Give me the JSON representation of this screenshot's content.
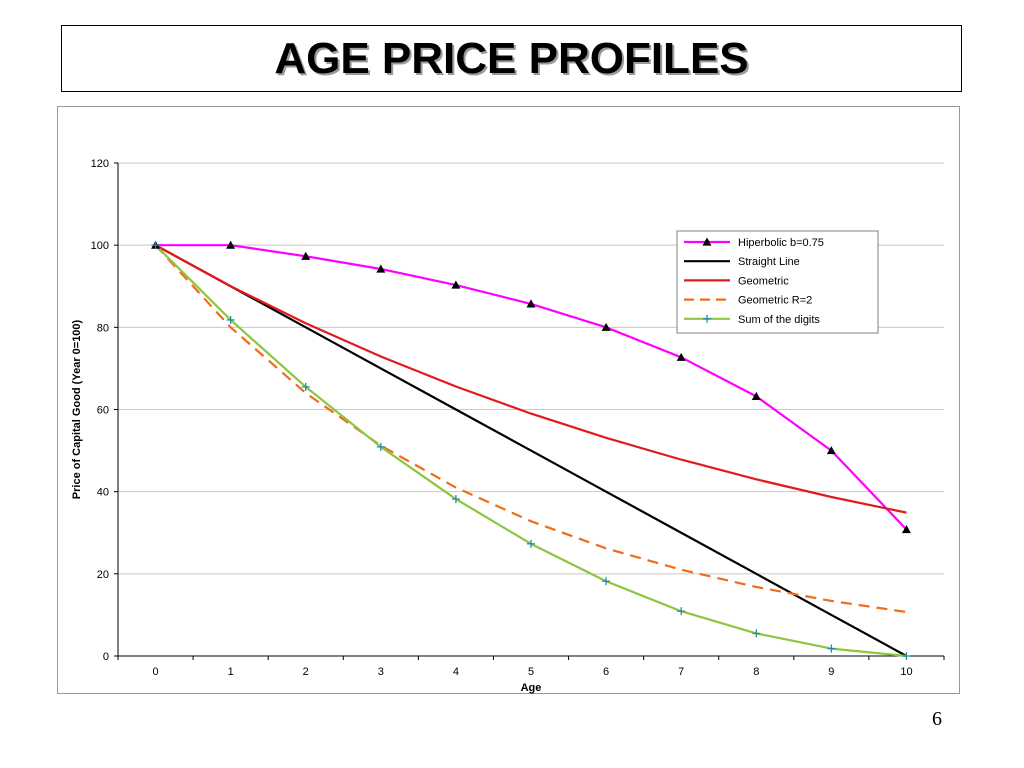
{
  "slide": {
    "title": "AGE PRICE PROFILES",
    "page_number": "6"
  },
  "chart_data": {
    "type": "line",
    "xlabel": "Age",
    "ylabel": "Price of Capital Good (Year 0=100)",
    "x": [
      0,
      1,
      2,
      3,
      4,
      5,
      6,
      7,
      8,
      9,
      10
    ],
    "xlim": [
      0,
      10
    ],
    "ylim": [
      0,
      120
    ],
    "y_ticks": [
      0,
      20,
      40,
      60,
      80,
      100,
      120
    ],
    "grid": "horizontal",
    "legend_position": "top-right",
    "series": [
      {
        "name": "Hiperbolic b=0.75",
        "color": "#FF00FF",
        "marker": "triangle",
        "dash": "solid",
        "values": [
          100,
          100,
          97.3,
          94.2,
          90.3,
          85.7,
          80,
          72.7,
          63.2,
          50,
          30.8
        ]
      },
      {
        "name": "Straight Line",
        "color": "#000000",
        "marker": "none",
        "dash": "solid",
        "values": [
          100,
          90,
          80,
          70,
          60,
          50,
          40,
          30,
          20,
          10,
          0
        ]
      },
      {
        "name": "Geometric",
        "color": "#E31A1C",
        "marker": "none",
        "dash": "solid",
        "values": [
          100,
          90,
          81,
          72.9,
          65.6,
          59,
          53.1,
          47.8,
          43,
          38.7,
          34.9
        ]
      },
      {
        "name": "Geometric R=2",
        "color": "#F26B1D",
        "marker": "none",
        "dash": "dashed",
        "values": [
          100,
          80,
          64,
          51.2,
          41,
          32.8,
          26.2,
          21,
          16.8,
          13.4,
          10.7
        ]
      },
      {
        "name": "Sum of the digits",
        "color": "#8CC63F",
        "marker": "plus",
        "marker_color": "#1F8FA6",
        "dash": "solid",
        "values": [
          100,
          81.8,
          65.5,
          50.9,
          38.2,
          27.3,
          18.2,
          10.9,
          5.5,
          1.8,
          0
        ]
      }
    ]
  }
}
